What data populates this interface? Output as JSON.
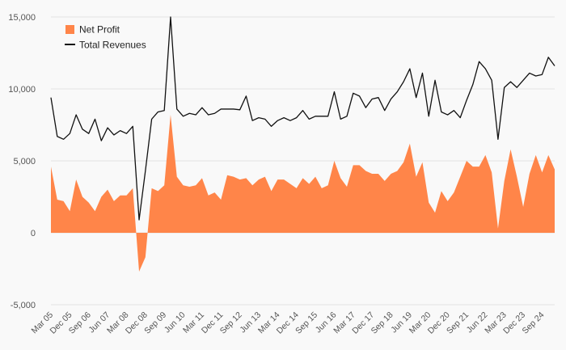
{
  "chart_data": {
    "type": "area+line",
    "title": "",
    "xlabel": "",
    "ylabel": "",
    "ylim": [
      -5000,
      15000
    ],
    "yticks": [
      -5000,
      0,
      5000,
      10000,
      15000
    ],
    "ytick_labels": [
      "-5,000",
      "0",
      "5,000",
      "10,000",
      "15,000"
    ],
    "xtick_labels": [
      "Mar 05",
      "Dec 05",
      "Sep 06",
      "Jun 07",
      "Mar 08",
      "Dec 08",
      "Sep 09",
      "Jun 10",
      "Mar 11",
      "Dec 11",
      "Sep 12",
      "Jun 13",
      "Mar 14",
      "Dec 14",
      "Sep 15",
      "Jun 16",
      "Mar 17",
      "Dec 17",
      "Sep 18",
      "Jun 19",
      "Mar 20",
      "Dec 20",
      "Sep 21",
      "Jun 22",
      "Mar 23",
      "Dec 23",
      "Sep 24"
    ],
    "colors": {
      "net_profit": "#ff8549",
      "total_revenues": "#111111",
      "grid": "#e2e2e2"
    },
    "legend": {
      "position": "top-left",
      "items": [
        {
          "label": "Net Profit",
          "shape": "square",
          "series": "net_profit"
        },
        {
          "label": "Total Revenues",
          "shape": "line",
          "series": "total_revenues"
        }
      ]
    },
    "series": [
      {
        "name": "Net Profit",
        "kind": "area",
        "values": [
          4600,
          2300,
          2200,
          1500,
          3700,
          2500,
          2100,
          1500,
          2500,
          3000,
          2200,
          2600,
          2600,
          3100,
          -2700,
          -1700,
          3100,
          2900,
          3300,
          8200,
          3900,
          3300,
          3200,
          3300,
          3800,
          2600,
          2800,
          2300,
          4000,
          3900,
          3700,
          3800,
          3300,
          3700,
          3900,
          2900,
          3700,
          3700,
          3400,
          3100,
          3800,
          3400,
          3900,
          3100,
          3300,
          5000,
          3800,
          3200,
          4700,
          4700,
          4300,
          4100,
          4100,
          3600,
          4100,
          4300,
          4900,
          6200,
          3900,
          4900,
          2100,
          1400,
          2900,
          2200,
          2800,
          3900,
          5000,
          4600,
          4600,
          5400,
          4200,
          300,
          3600,
          5800,
          3900,
          1800,
          4100,
          5400,
          4200,
          5400,
          4400
        ]
      },
      {
        "name": "Total Revenues",
        "kind": "line",
        "values": [
          9400,
          6700,
          6500,
          6900,
          8200,
          7200,
          6900,
          7900,
          6400,
          7300,
          6800,
          7100,
          6900,
          7400,
          900,
          4300,
          7900,
          8400,
          8500,
          15000,
          8600,
          8100,
          8300,
          8200,
          8700,
          8200,
          8300,
          8600,
          8600,
          8600,
          8550,
          9500,
          7800,
          8000,
          7900,
          7400,
          7800,
          8000,
          7800,
          8000,
          8500,
          7900,
          8100,
          8100,
          8100,
          9800,
          7900,
          8100,
          9700,
          9500,
          8700,
          9300,
          9400,
          8500,
          9300,
          9800,
          10500,
          11400,
          9400,
          11100,
          8100,
          10600,
          8400,
          8200,
          8500,
          8000,
          9200,
          10300,
          11900,
          11400,
          10600,
          6500,
          10100,
          10500,
          10100,
          10600,
          11100,
          10900,
          11000,
          12200,
          11600
        ]
      }
    ]
  }
}
